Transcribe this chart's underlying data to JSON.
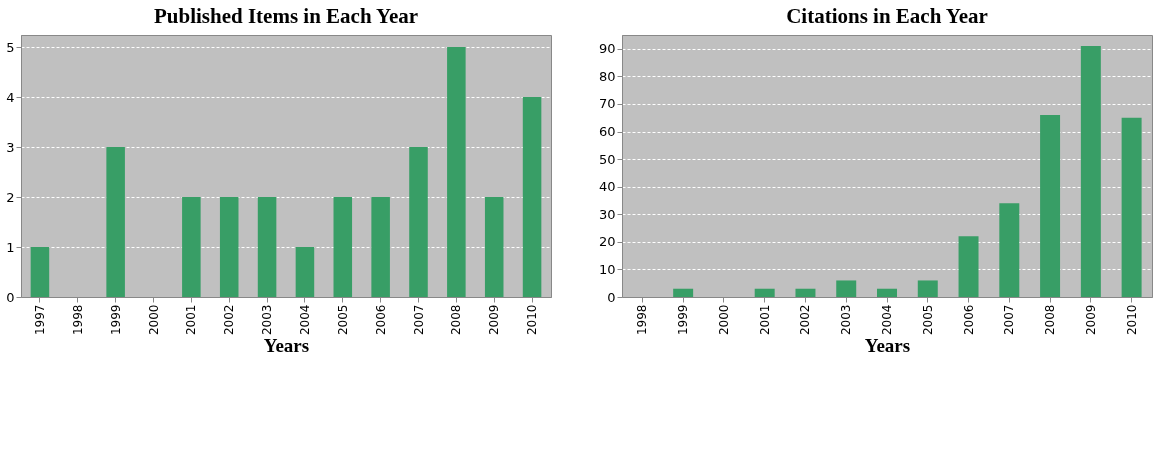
{
  "chart_data": [
    {
      "type": "bar",
      "title": "Published Items in Each Year",
      "xlabel": "Years",
      "categories": [
        "1997",
        "1998",
        "1999",
        "2000",
        "2001",
        "2002",
        "2003",
        "2004",
        "2005",
        "2006",
        "2007",
        "2008",
        "2009",
        "2010"
      ],
      "values": [
        1,
        0,
        3,
        0,
        2,
        2,
        2,
        1,
        2,
        2,
        3,
        5,
        2,
        4
      ],
      "color": "#389e66",
      "ylim": [
        0,
        5.24
      ],
      "yticks": [
        0,
        1,
        2,
        3,
        4,
        5
      ],
      "grid": "y"
    },
    {
      "type": "bar",
      "title": "Citations in Each Year",
      "xlabel": "Years",
      "categories": [
        "1998",
        "1999",
        "2000",
        "2001",
        "2002",
        "2003",
        "2004",
        "2005",
        "2006",
        "2007",
        "2008",
        "2009",
        "2010"
      ],
      "values": [
        0,
        3,
        0,
        3,
        3,
        6,
        3,
        6,
        22,
        34,
        66,
        91,
        65
      ],
      "color": "#389e66",
      "ylim": [
        0,
        95
      ],
      "yticks": [
        0,
        10,
        20,
        30,
        40,
        50,
        60,
        70,
        80,
        90
      ],
      "grid": "y"
    }
  ]
}
